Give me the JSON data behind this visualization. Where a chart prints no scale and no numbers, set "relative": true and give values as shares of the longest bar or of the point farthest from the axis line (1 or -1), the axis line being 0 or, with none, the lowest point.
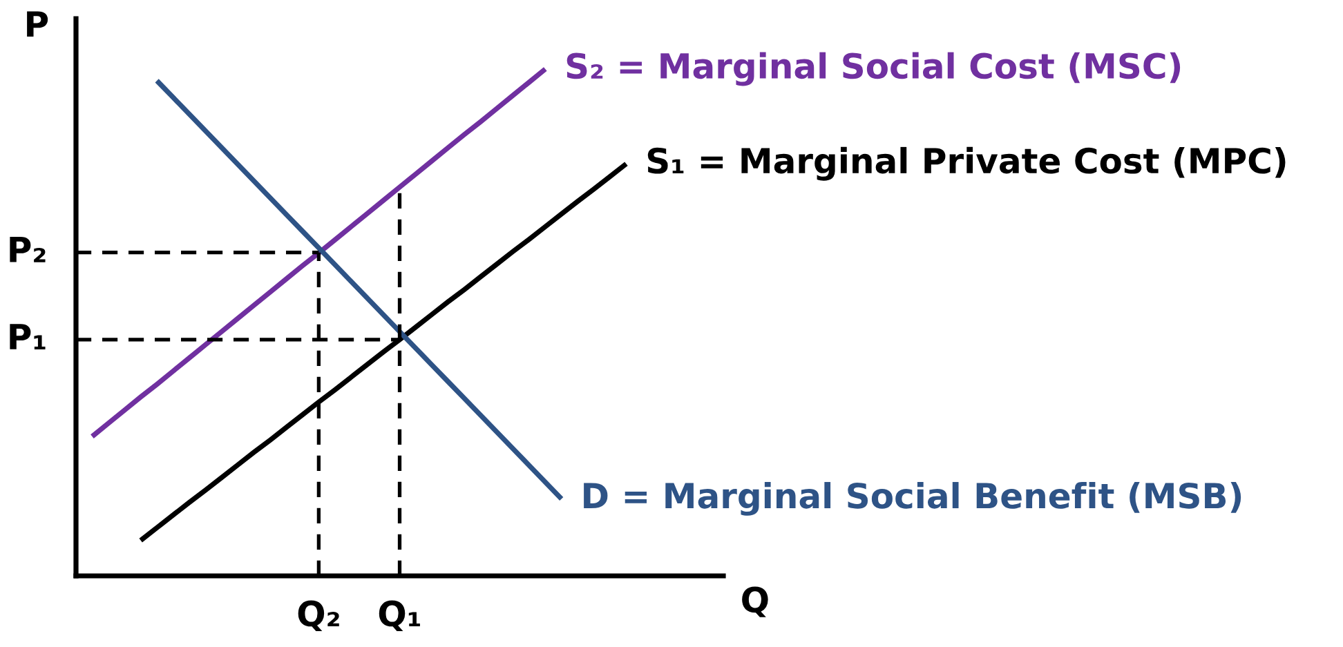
{
  "chart_data": {
    "type": "line",
    "relative": true,
    "xlabel": "Q",
    "ylabel": "P",
    "tick_labels": "x",
    "categories": [
      null,
      null,
      null,
      null,
      null,
      null,
      null,
      null,
      null,
      null,
      null,
      null,
      null,
      null,
      null,
      "Q₂",
      null,
      null,
      null,
      null,
      "Q₁",
      null,
      null,
      null,
      null,
      null,
      null,
      null,
      null,
      null,
      null,
      null,
      null,
      null,
      null,
      null,
      null,
      null,
      null,
      null,
      null
    ],
    "series": [
      {
        "name": "S₂ = Marginal Social Cost (MSC)",
        "color": "#7030a0",
        "line_style": "solid",
        "values": [
          null,
          0.275,
          0.301,
          0.327,
          0.353,
          0.378,
          0.404,
          0.43,
          0.456,
          0.482,
          0.508,
          0.534,
          0.56,
          0.586,
          0.612,
          0.637,
          0.663,
          0.689,
          0.715,
          0.741,
          0.767,
          0.793,
          0.819,
          0.845,
          0.871,
          0.896,
          0.922,
          0.948,
          0.974,
          1,
          null,
          null,
          null,
          null,
          null,
          null,
          null,
          null,
          null,
          null,
          null
        ]
      },
      {
        "name": "S₁ = Marginal Private Cost (MPC)",
        "color": "#000000",
        "line_style": "solid",
        "values": [
          null,
          null,
          null,
          null,
          0.07,
          0.095,
          0.12,
          0.145,
          0.169,
          0.194,
          0.219,
          0.244,
          0.268,
          0.293,
          0.318,
          0.343,
          0.367,
          0.392,
          0.417,
          0.442,
          0.466,
          0.491,
          0.516,
          0.541,
          0.565,
          0.59,
          0.615,
          0.64,
          0.664,
          0.689,
          0.714,
          0.739,
          0.763,
          0.788,
          0.813,
          null,
          null,
          null,
          null,
          null,
          null
        ]
      },
      {
        "name": "D = Marginal Social Benefit (MSB)",
        "color": "#2e5386",
        "line_style": "solid",
        "values": [
          null,
          null,
          null,
          null,
          null,
          0.977,
          0.944,
          0.911,
          0.878,
          0.845,
          0.812,
          0.779,
          0.746,
          0.713,
          0.68,
          0.647,
          0.614,
          0.581,
          0.548,
          0.515,
          0.482,
          0.449,
          0.416,
          0.383,
          0.35,
          0.317,
          0.284,
          0.251,
          0.218,
          0.185,
          0.152,
          null,
          null,
          null,
          null,
          null,
          null,
          null,
          null,
          null,
          null
        ]
      },
      {
        "name": "P₂",
        "color": "#000000",
        "line_style": "dashed",
        "values": [
          0.638,
          0.638,
          0.638,
          0.638,
          0.638,
          0.638,
          0.638,
          0.638,
          0.638,
          0.638,
          0.638,
          0.638,
          0.638,
          0.638,
          0.638,
          0.638,
          null,
          null,
          null,
          null,
          null,
          null,
          null,
          null,
          null,
          null,
          null,
          null,
          null,
          null,
          null,
          null,
          null,
          null,
          null,
          null,
          null,
          null,
          null,
          null,
          null
        ]
      },
      {
        "name": "P₁",
        "color": "#000000",
        "line_style": "dashed",
        "values": [
          0.466,
          0.466,
          0.466,
          0.466,
          0.466,
          0.466,
          0.466,
          0.466,
          0.466,
          0.466,
          0.466,
          0.466,
          0.466,
          0.466,
          0.466,
          0.466,
          0.466,
          0.466,
          0.466,
          0.466,
          0.466,
          null,
          null,
          null,
          null,
          null,
          null,
          null,
          null,
          null,
          null,
          null,
          null,
          null,
          null,
          null,
          null,
          null,
          null,
          null,
          null
        ]
      },
      {
        "color": "#000000",
        "line_style": "dashed",
        "x": [
          "Q₂",
          "Q₂"
        ],
        "values": [
          0,
          0.638
        ]
      },
      {
        "color": "#000000",
        "line_style": "dashed",
        "x": [
          "Q₁",
          "Q₁"
        ],
        "values": [
          0,
          0.755
        ]
      }
    ]
  }
}
